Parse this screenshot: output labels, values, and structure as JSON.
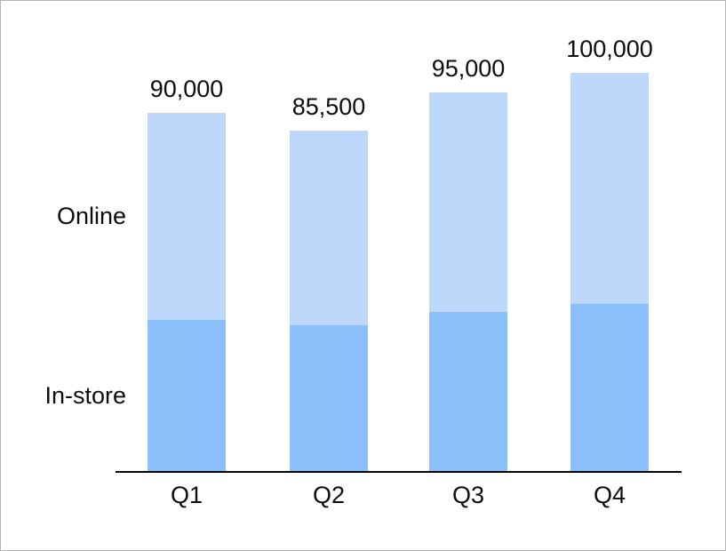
{
  "chart_data": {
    "type": "bar",
    "stacked": true,
    "title": "",
    "xlabel": "",
    "ylabel": "",
    "grid": false,
    "legend_position": "left-inline",
    "ylim": [
      0,
      100000
    ],
    "categories": [
      "Q1",
      "Q2",
      "Q3",
      "Q4"
    ],
    "series": [
      {
        "name": "In-store",
        "color": "#8CC0FB",
        "values": [
          38000,
          36500,
          40000,
          42000
        ]
      },
      {
        "name": "Online",
        "color": "#BED8FC",
        "values": [
          52000,
          49000,
          55000,
          58000
        ]
      }
    ],
    "totals": [
      90000,
      85500,
      95000,
      100000
    ],
    "total_labels": [
      "90,000",
      "85,500",
      "95,000",
      "100,000"
    ],
    "axis_color": "#000000",
    "text_color": "#0d0d0d",
    "background": "#FFFFFF"
  }
}
